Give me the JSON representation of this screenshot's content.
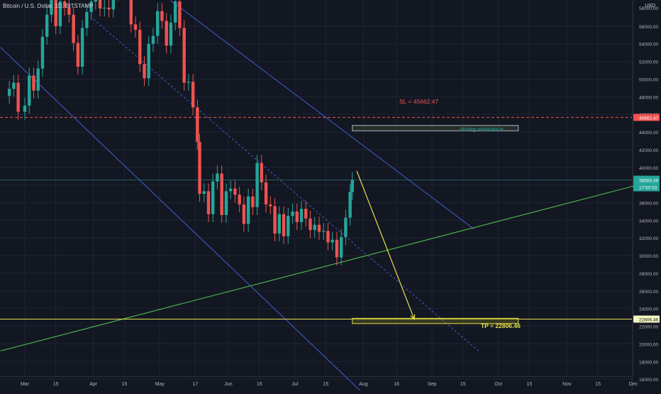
{
  "header": {
    "symbol_title": "Bitcoin / U.S. Dollar, 1D, BITSTAMP",
    "currency": "USD"
  },
  "colors": {
    "background": "#131722",
    "grid": "#1f2433",
    "up_candle": "#26a69a",
    "down_candle": "#ef5350",
    "channel": "#3f5fd6",
    "support_line": "#4caf50",
    "arrow": "#e6e04a",
    "tp_line": "#e6e04a",
    "sl_line": "#ef5350",
    "resistance_box": "#26a69a",
    "price_tag": "#26a69a",
    "axis_text": "#b2b5be"
  },
  "chart_data": {
    "type": "candlestick",
    "title": "Bitcoin / U.S. Dollar, 1D, BITSTAMP",
    "y_axis_ticks": [
      16000,
      18000,
      20000,
      22000,
      24000,
      26000,
      28000,
      30000,
      32000,
      34000,
      36000,
      38000,
      40000,
      42000,
      44000,
      46000,
      48000,
      50000,
      52000,
      54000,
      56000
    ],
    "y_tick_labels": [
      "16000.00",
      "18000.00",
      "20000.00",
      "22000.00",
      "24000.00",
      "26000.00",
      "28000.00",
      "30000.00",
      "32000.00",
      "34000.00",
      "36000.00",
      "38000.00",
      "40000.00",
      "42000.00",
      "44000.00",
      "46000.00",
      "48000.00",
      "50000.00",
      "52000.00",
      "54000.00",
      "56000.00"
    ],
    "top_partial_tick_label": "58000.00",
    "ylim": [
      14500,
      59000
    ],
    "x_axis_labels": [
      "Mar",
      "15",
      "Apr",
      "15",
      "May",
      "17",
      "Jun",
      "15",
      "Jul",
      "15",
      "Aug",
      "16",
      "Sep",
      "15",
      "Oct",
      "15",
      "Nov",
      "15",
      "Dec"
    ],
    "x_axis_label_dates": [
      "2021-03-01",
      "2021-03-15",
      "2021-04-01",
      "2021-04-15",
      "2021-05-01",
      "2021-05-17",
      "2021-06-01",
      "2021-06-15",
      "2021-07-01",
      "2021-07-15",
      "2021-08-01",
      "2021-08-16",
      "2021-09-01",
      "2021-09-15",
      "2021-10-01",
      "2021-10-15",
      "2021-11-01",
      "2021-11-15",
      "2021-12-01"
    ],
    "candles": [
      {
        "date": "2021-02-22",
        "close": 48900
      },
      {
        "date": "2021-02-24",
        "close": 49600
      },
      {
        "date": "2021-02-26",
        "close": 46300
      },
      {
        "date": "2021-03-01",
        "close": 47000
      },
      {
        "date": "2021-03-03",
        "close": 50400
      },
      {
        "date": "2021-03-05",
        "close": 48700
      },
      {
        "date": "2021-03-07",
        "close": 51200
      },
      {
        "date": "2021-03-09",
        "close": 54800
      },
      {
        "date": "2021-03-11",
        "close": 57300
      },
      {
        "date": "2021-03-13",
        "close": 61000
      },
      {
        "date": "2021-03-15",
        "close": 56000
      },
      {
        "date": "2021-03-17",
        "close": 58800
      },
      {
        "date": "2021-03-19",
        "close": 58100
      },
      {
        "date": "2021-03-21",
        "close": 57300
      },
      {
        "date": "2021-03-23",
        "close": 54100
      },
      {
        "date": "2021-03-25",
        "close": 51400
      },
      {
        "date": "2021-03-27",
        "close": 55800
      },
      {
        "date": "2021-03-29",
        "close": 57600
      },
      {
        "date": "2021-03-31",
        "close": 58800
      },
      {
        "date": "2021-04-02",
        "close": 59000
      },
      {
        "date": "2021-04-04",
        "close": 58000
      },
      {
        "date": "2021-04-06",
        "close": 58100
      },
      {
        "date": "2021-04-08",
        "close": 57900
      },
      {
        "date": "2021-04-10",
        "close": 59800
      },
      {
        "date": "2021-04-12",
        "close": 60000
      },
      {
        "date": "2021-04-14",
        "close": 63500
      },
      {
        "date": "2021-04-16",
        "close": 61200
      },
      {
        "date": "2021-04-18",
        "close": 56200
      },
      {
        "date": "2021-04-20",
        "close": 55600
      },
      {
        "date": "2021-04-22",
        "close": 51700
      },
      {
        "date": "2021-04-24",
        "close": 50100
      },
      {
        "date": "2021-04-26",
        "close": 54000
      },
      {
        "date": "2021-04-28",
        "close": 54900
      },
      {
        "date": "2021-04-30",
        "close": 57700
      },
      {
        "date": "2021-05-02",
        "close": 56600
      },
      {
        "date": "2021-05-04",
        "close": 53800
      },
      {
        "date": "2021-05-06",
        "close": 56400
      },
      {
        "date": "2021-05-08",
        "close": 58800
      },
      {
        "date": "2021-05-10",
        "close": 55800
      },
      {
        "date": "2021-05-12",
        "close": 49600
      },
      {
        "date": "2021-05-14",
        "close": 49700
      },
      {
        "date": "2021-05-16",
        "close": 46800
      },
      {
        "date": "2021-05-18",
        "close": 42900
      },
      {
        "date": "2021-05-19",
        "close": 37000
      },
      {
        "date": "2021-05-21",
        "close": 37300
      },
      {
        "date": "2021-05-23",
        "close": 34700
      },
      {
        "date": "2021-05-25",
        "close": 38400
      },
      {
        "date": "2021-05-27",
        "close": 39300
      },
      {
        "date": "2021-05-29",
        "close": 34600
      },
      {
        "date": "2021-05-31",
        "close": 37300
      },
      {
        "date": "2021-06-02",
        "close": 37600
      },
      {
        "date": "2021-06-04",
        "close": 36900
      },
      {
        "date": "2021-06-06",
        "close": 35800
      },
      {
        "date": "2021-06-08",
        "close": 33600
      },
      {
        "date": "2021-06-10",
        "close": 36700
      },
      {
        "date": "2021-06-12",
        "close": 35500
      },
      {
        "date": "2021-06-14",
        "close": 40500
      },
      {
        "date": "2021-06-16",
        "close": 38300
      },
      {
        "date": "2021-06-18",
        "close": 35800
      },
      {
        "date": "2021-06-20",
        "close": 35600
      },
      {
        "date": "2021-06-22",
        "close": 32500
      },
      {
        "date": "2021-06-24",
        "close": 34700
      },
      {
        "date": "2021-06-26",
        "close": 32200
      },
      {
        "date": "2021-06-28",
        "close": 34500
      },
      {
        "date": "2021-06-30",
        "close": 35000
      },
      {
        "date": "2021-07-02",
        "close": 33800
      },
      {
        "date": "2021-07-04",
        "close": 35300
      },
      {
        "date": "2021-07-06",
        "close": 34200
      },
      {
        "date": "2021-07-08",
        "close": 32900
      },
      {
        "date": "2021-07-10",
        "close": 33500
      },
      {
        "date": "2021-07-12",
        "close": 32700
      },
      {
        "date": "2021-07-14",
        "close": 32800
      },
      {
        "date": "2021-07-16",
        "close": 31500
      },
      {
        "date": "2021-07-18",
        "close": 31800
      },
      {
        "date": "2021-07-20",
        "close": 29800
      },
      {
        "date": "2021-07-22",
        "close": 32100
      },
      {
        "date": "2021-07-24",
        "close": 34300
      },
      {
        "date": "2021-07-26",
        "close": 37200
      },
      {
        "date": "2021-07-27",
        "close": 38569.39
      }
    ],
    "last_price": "38569.39",
    "countdown": "17:50:53",
    "annotations": {
      "sl_label": "SL = 45662.47",
      "sl_value": 45662.47,
      "sl_tag": "45662.47",
      "tp_label": "TP = 22806.46",
      "tp_value": 22806.46,
      "tp_tag": "22806.46",
      "resistance_label": "strong resistance",
      "resistance_box": {
        "start": "2021-07-27",
        "end": "2021-10-10",
        "low": 44150,
        "high": 44750
      },
      "tp_box": {
        "start": "2021-07-27",
        "end": "2021-10-10",
        "low": 22300,
        "high": 22900
      },
      "arrow": {
        "from": {
          "date": "2021-07-29",
          "price": 39600
        },
        "to": {
          "date": "2021-08-24",
          "price": 22800
        }
      },
      "channel_upper": {
        "from": {
          "date": "2021-05-06",
          "price": 58900
        },
        "to": {
          "date": "2021-09-20",
          "price": 33000
        }
      },
      "channel_lower": {
        "from": {
          "date": "2021-02-18",
          "price": 53600
        },
        "to": {
          "date": "2021-07-31",
          "price": 14600
        }
      },
      "channel_mid_dashed": {
        "from": {
          "date": "2021-04-01",
          "price": 56800
        },
        "to": {
          "date": "2021-09-22",
          "price": 19200
        }
      },
      "support_line": {
        "from": {
          "date": "2021-02-18",
          "price": 19200
        },
        "to": {
          "date": "2021-12-09",
          "price": 38400
        }
      }
    }
  }
}
